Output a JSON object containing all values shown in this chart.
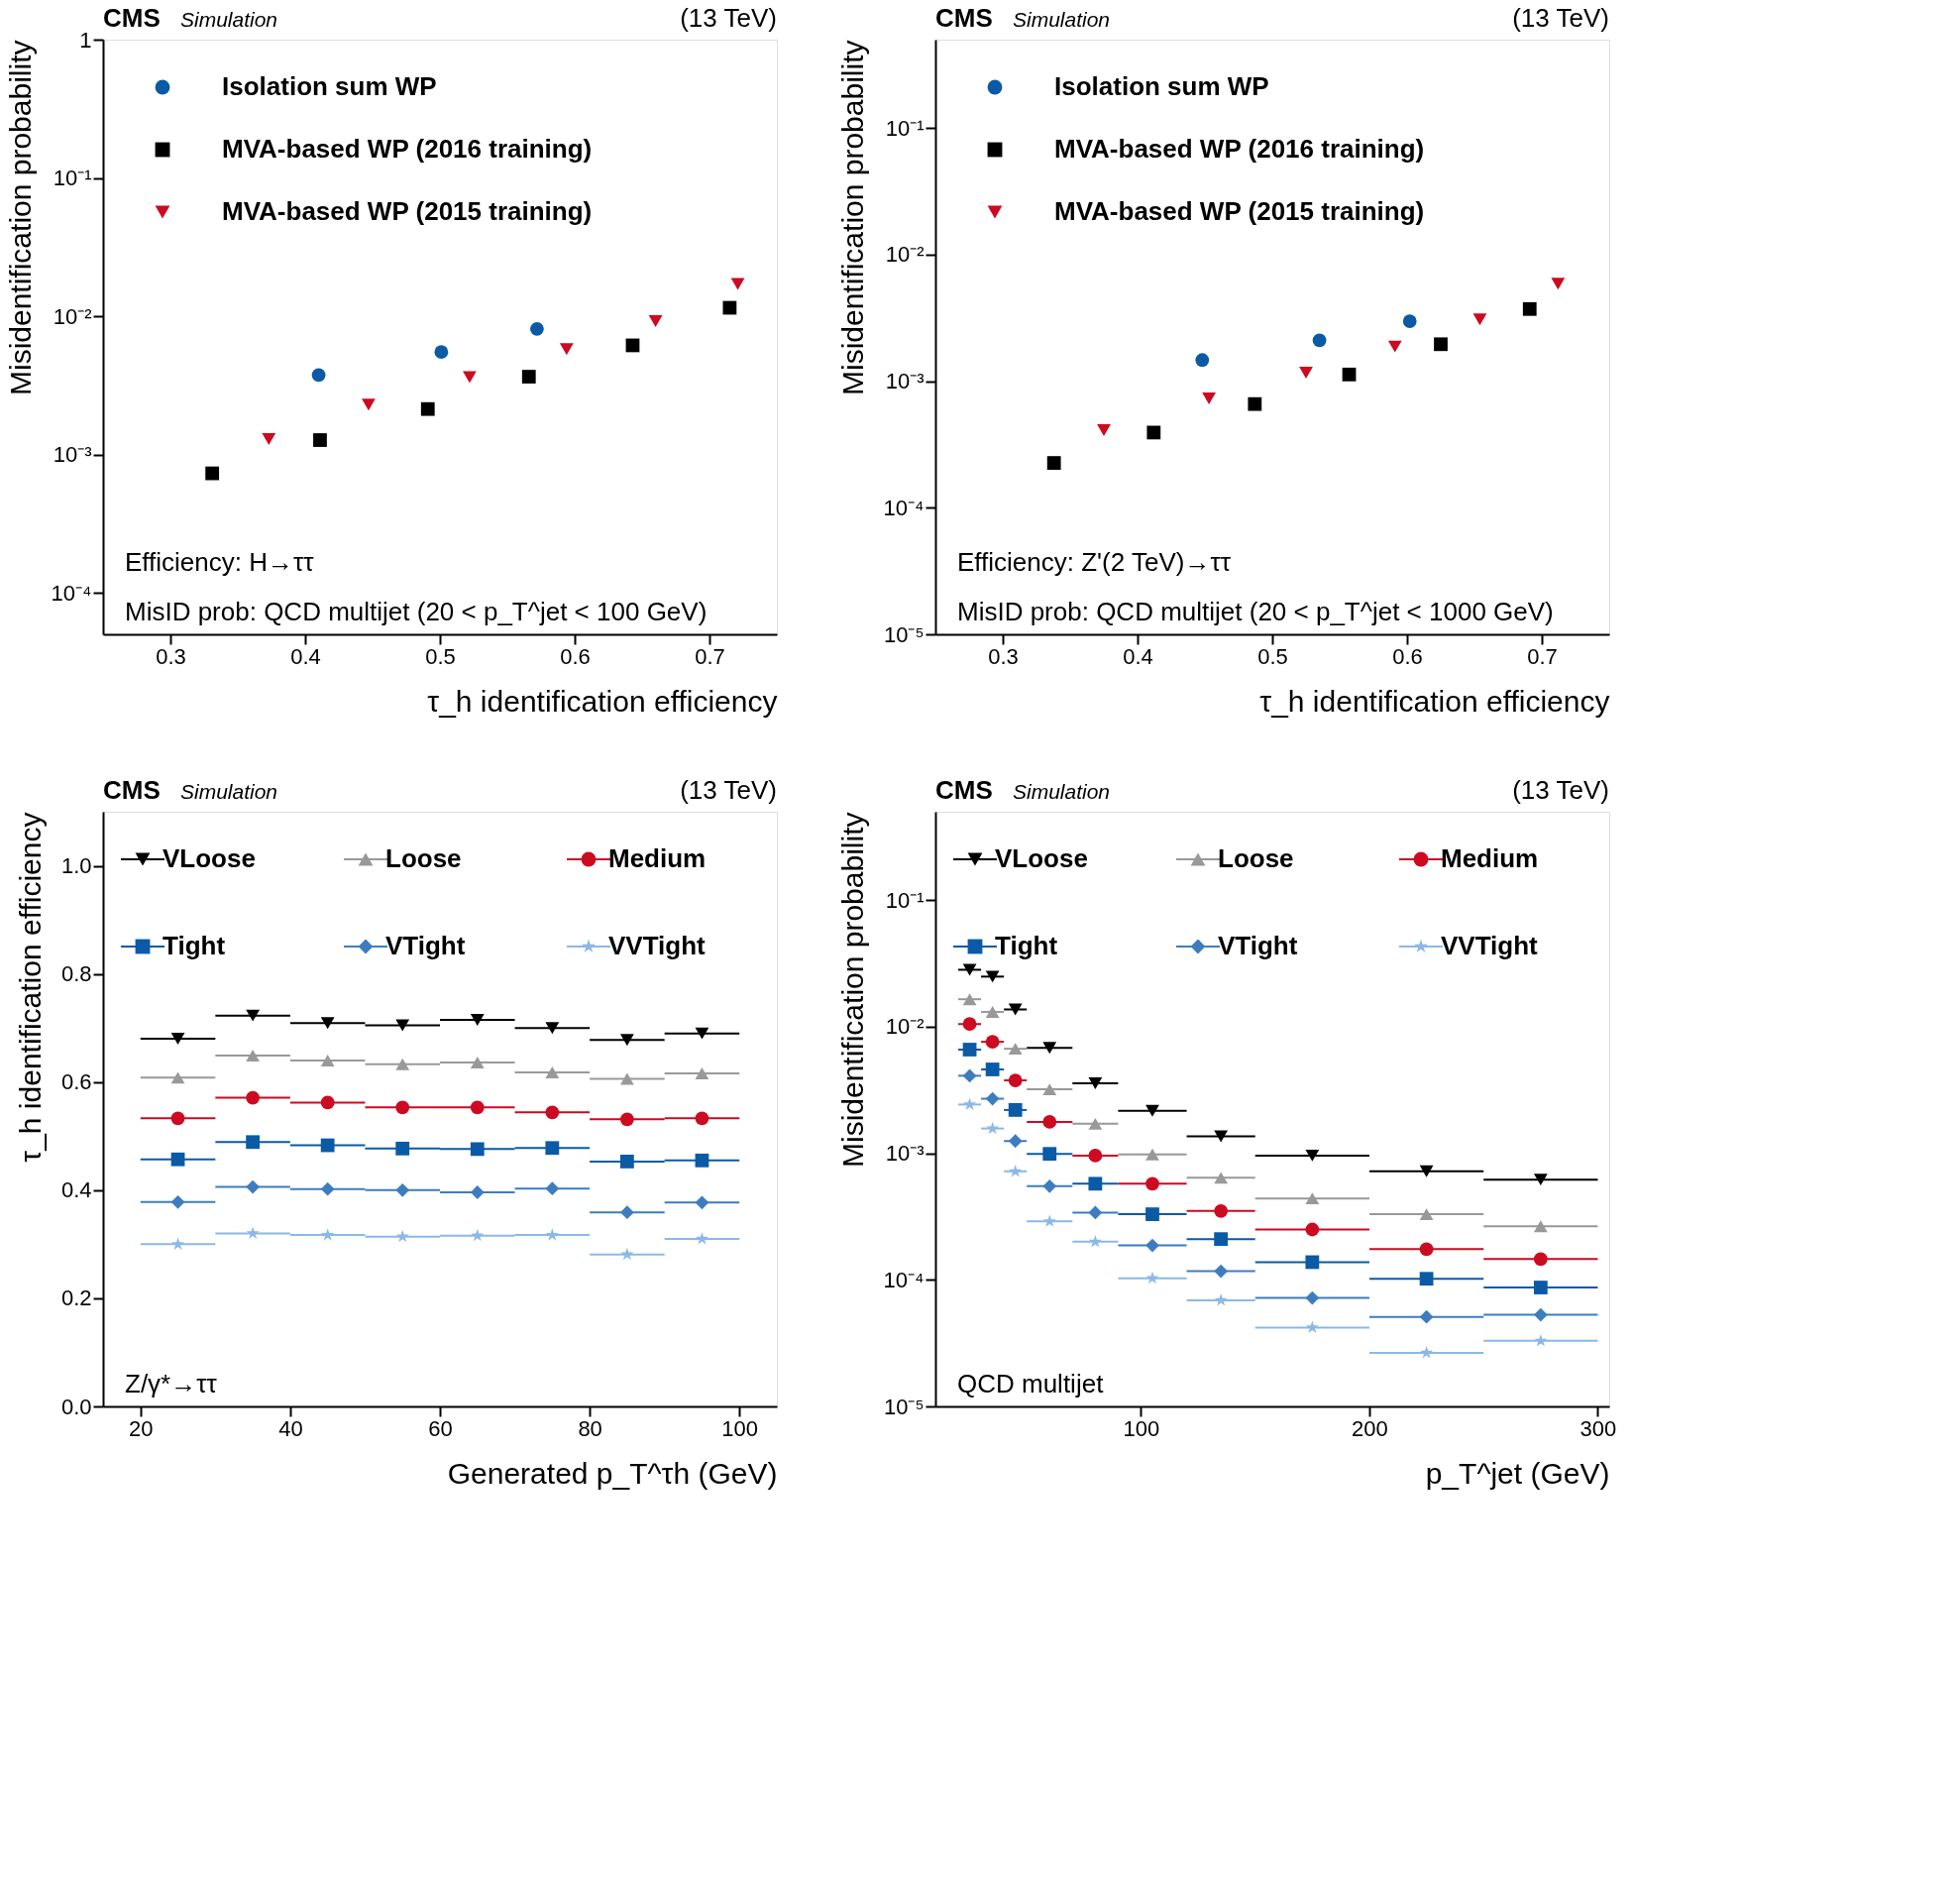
{
  "chart_data": [
    {
      "type": "scatter",
      "title": "CMS",
      "subtitle": "Simulation",
      "xlabel": "τ_h identification efficiency",
      "ylabel": "Misidentification probability",
      "log": "y",
      "legend": "top left",
      "xlim": [
        0.25,
        0.75
      ],
      "xticks": [
        0.3,
        0.4,
        0.5,
        0.6,
        0.7
      ],
      "ylim": [
        5e-05,
        1
      ],
      "yticks": [
        {
          "value": 0.0001,
          "label": "10⁻⁴"
        },
        {
          "value": 0.001,
          "label": "10⁻³"
        },
        {
          "value": 0.01,
          "label": "10⁻²"
        },
        {
          "value": 0.1,
          "label": "10⁻¹"
        },
        1
      ],
      "annotations": [
        "(13 TeV)",
        "Efficiency: H→ττ",
        "MisID prob: QCD multijet (20 < p_T^jet < 100 GeV)"
      ],
      "series": [
        {
          "name": "Isolation sum WP",
          "color": "#0b5aa6",
          "marker": "circle",
          "x": [
            0.41,
            0.501,
            0.572
          ],
          "values": [
            0.00375,
            0.0055,
            0.0081
          ]
        },
        {
          "name": "MVA-based WP (2016 training)",
          "color": "#000000",
          "marker": "square",
          "x": [
            0.331,
            0.411,
            0.491,
            0.566,
            0.643,
            0.715
          ],
          "values": [
            0.00073,
            0.00127,
            0.00213,
            0.00365,
            0.00615,
            0.0115
          ]
        },
        {
          "name": "MVA-based WP (2015 training)",
          "color": "#cc0a21",
          "marker": "triangle-down",
          "x": [
            0.373,
            0.447,
            0.522,
            0.594,
            0.66,
            0.721
          ],
          "values": [
            0.00129,
            0.00229,
            0.00362,
            0.00577,
            0.0092,
            0.0171
          ]
        }
      ]
    },
    {
      "type": "scatter",
      "title": "CMS",
      "subtitle": "Simulation",
      "xlabel": "τ_h identification efficiency",
      "ylabel": "Misidentification probability",
      "log": "y",
      "legend": "top left",
      "xlim": [
        0.25,
        0.75
      ],
      "xticks": [
        0.3,
        0.4,
        0.5,
        0.6,
        0.7
      ],
      "ylim": [
        1e-05,
        0.5
      ],
      "yticks": [
        {
          "value": 1e-05,
          "label": "10⁻⁵"
        },
        {
          "value": 0.0001,
          "label": "10⁻⁴"
        },
        {
          "value": 0.001,
          "label": "10⁻³"
        },
        {
          "value": 0.01,
          "label": "10⁻²"
        },
        {
          "value": 0.1,
          "label": "10⁻¹"
        }
      ],
      "annotations": [
        "(13 TeV)",
        "Efficiency: Z'(2 TeV)→ττ",
        "MisID prob: QCD multijet (20 < p_T^jet < 1000 GeV)"
      ],
      "series": [
        {
          "name": "Isolation sum WP",
          "color": "#0b5aa6",
          "marker": "circle",
          "x": [
            0.448,
            0.535,
            0.602
          ],
          "values": [
            0.00147,
            0.0021,
            0.00298
          ]
        },
        {
          "name": "MVA-based WP (2016 training)",
          "color": "#000000",
          "marker": "square",
          "x": [
            0.338,
            0.412,
            0.487,
            0.557,
            0.625,
            0.691
          ],
          "values": [
            0.000226,
            0.000393,
            0.00066,
            0.00113,
            0.00196,
            0.00372
          ]
        },
        {
          "name": "MVA-based WP (2015 training)",
          "color": "#cc0a21",
          "marker": "triangle-down",
          "x": [
            0.375,
            0.453,
            0.525,
            0.591,
            0.654,
            0.712
          ],
          "values": [
            0.00041,
            0.00073,
            0.00117,
            0.00188,
            0.00308,
            0.0059
          ]
        }
      ]
    },
    {
      "type": "scatter",
      "title": "CMS",
      "subtitle": "Simulation",
      "xlabel": "Generated p_T^τh (GeV)",
      "ylabel": "τ_h identification efficiency",
      "legend": "top",
      "xlim": [
        15,
        105
      ],
      "xticks": [
        20,
        40,
        60,
        80,
        100
      ],
      "ylim": [
        0,
        1.1
      ],
      "yticks": [
        {
          "value": 0,
          "label": "0.0"
        },
        {
          "value": 0.2,
          "label": "0.2"
        },
        {
          "value": 0.4,
          "label": "0.4"
        },
        {
          "value": 0.6,
          "label": "0.6"
        },
        {
          "value": 0.8,
          "label": "0.8"
        },
        {
          "value": 1,
          "label": "1.0"
        }
      ],
      "annotations": [
        "(13 TeV)",
        "Z/γ*→ττ"
      ],
      "x": [
        25,
        35,
        45,
        55,
        65,
        75,
        85,
        95
      ],
      "series": [
        {
          "name": "VLoose",
          "color": "#000000",
          "marker": "triangle-down",
          "values": [
            0.68,
            0.723,
            0.709,
            0.705,
            0.715,
            0.7,
            0.678,
            0.69
          ],
          "xerrors": [
            5,
            5,
            5,
            5,
            5,
            5,
            5,
            5
          ]
        },
        {
          "name": "Loose",
          "color": "#999999",
          "marker": "triangle",
          "values": [
            0.608,
            0.649,
            0.64,
            0.633,
            0.636,
            0.618,
            0.606,
            0.616
          ],
          "xerrors": [
            5,
            5,
            5,
            5,
            5,
            5,
            5,
            5
          ]
        },
        {
          "name": "Medium",
          "color": "#cc0a21",
          "marker": "circle",
          "values": [
            0.533,
            0.571,
            0.562,
            0.553,
            0.553,
            0.544,
            0.531,
            0.533
          ],
          "xerrors": [
            5,
            5,
            5,
            5,
            5,
            5,
            5,
            5
          ]
        },
        {
          "name": "Tight",
          "color": "#0b5aa6",
          "marker": "square",
          "values": [
            0.457,
            0.489,
            0.483,
            0.477,
            0.476,
            0.478,
            0.453,
            0.455
          ],
          "xerrors": [
            5,
            5,
            5,
            5,
            5,
            5,
            5,
            5
          ]
        },
        {
          "name": "VTight",
          "color": "#3d7dbf",
          "marker": "diamond",
          "values": [
            0.378,
            0.406,
            0.402,
            0.4,
            0.396,
            0.403,
            0.359,
            0.377
          ],
          "xerrors": [
            5,
            5,
            5,
            5,
            5,
            5,
            5,
            5
          ]
        },
        {
          "name": "VVTight",
          "color": "#8cb8e6",
          "marker": "star",
          "values": [
            0.3,
            0.32,
            0.317,
            0.314,
            0.316,
            0.317,
            0.281,
            0.31
          ],
          "xerrors": [
            5,
            5,
            5,
            5,
            5,
            5,
            5,
            5
          ]
        }
      ]
    },
    {
      "type": "scatter",
      "title": "CMS",
      "subtitle": "Simulation",
      "xlabel": "p_T^jet (GeV)",
      "ylabel": "Misidentification probability",
      "log": "y",
      "legend": "top",
      "xlim": [
        10,
        305
      ],
      "xticks": [
        100,
        200,
        300
      ],
      "ylim": [
        1e-05,
        0.5
      ],
      "yticks": [
        {
          "value": 1e-05,
          "label": "10⁻⁵"
        },
        {
          "value": 0.0001,
          "label": "10⁻⁴"
        },
        {
          "value": 0.001,
          "label": "10⁻³"
        },
        {
          "value": 0.01,
          "label": "10⁻²"
        },
        {
          "value": 0.1,
          "label": "10⁻¹"
        }
      ],
      "annotations": [
        "(13 TeV)",
        "QCD multijet"
      ],
      "x": [
        25,
        35,
        45,
        60,
        80,
        105,
        135,
        175,
        225,
        275
      ],
      "series": [
        {
          "name": "VLoose",
          "color": "#000000",
          "marker": "triangle-down",
          "values": [
            0.0282,
            0.0249,
            0.0137,
            0.0068,
            0.00357,
            0.00217,
            0.00136,
            0.00096,
            0.00072,
            0.00062
          ],
          "xerrors": [
            5,
            5,
            5,
            10,
            10,
            15,
            15,
            25,
            25,
            25
          ]
        },
        {
          "name": "Loose",
          "color": "#999999",
          "marker": "triangle",
          "values": [
            0.0165,
            0.0131,
            0.0067,
            0.0032,
            0.00171,
            0.00098,
            0.00064,
            0.00044,
            0.00033,
            0.000265
          ],
          "xerrors": [
            5,
            5,
            5,
            10,
            10,
            15,
            15,
            25,
            25,
            25
          ]
        },
        {
          "name": "Medium",
          "color": "#cc0a21",
          "marker": "circle",
          "values": [
            0.0105,
            0.0076,
            0.00377,
            0.00177,
            0.00096,
            0.000575,
            0.00035,
            0.00025,
            0.000175,
            0.000146
          ],
          "xerrors": [
            5,
            5,
            5,
            10,
            10,
            15,
            15,
            25,
            25,
            25
          ]
        },
        {
          "name": "Tight",
          "color": "#0b5aa6",
          "marker": "square",
          "values": [
            0.0066,
            0.0046,
            0.0022,
            0.00099,
            0.000575,
            0.00033,
            0.00021,
            0.000138,
            0.000102,
            8.7e-05
          ],
          "xerrors": [
            5,
            5,
            5,
            10,
            10,
            15,
            15,
            25,
            25,
            25
          ]
        },
        {
          "name": "VTight",
          "color": "#3d7dbf",
          "marker": "diamond",
          "values": [
            0.0041,
            0.0027,
            0.00125,
            0.00055,
            0.00034,
            0.000187,
            0.000117,
            7.2e-05,
            5.1e-05,
            5.3e-05
          ],
          "xerrors": [
            5,
            5,
            5,
            10,
            10,
            15,
            15,
            25,
            25,
            25
          ]
        },
        {
          "name": "VVTight",
          "color": "#8cb8e6",
          "marker": "star",
          "values": [
            0.00243,
            0.00157,
            0.00072,
            0.00029,
            0.0002,
            0.000103,
            6.9e-05,
            4.2e-05,
            2.65e-05,
            3.3e-05
          ],
          "xerrors": [
            5,
            5,
            5,
            10,
            10,
            15,
            15,
            25,
            25,
            25
          ]
        }
      ]
    }
  ]
}
